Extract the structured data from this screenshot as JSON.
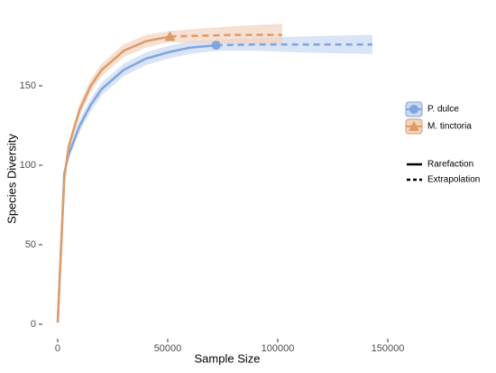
{
  "chart_data": {
    "type": "rarefaction",
    "x_label": "Sample Size",
    "y_label": "Species Diversity",
    "xlim": [
      -6967,
      154100
    ],
    "ylim": [
      -9.1,
      192.6
    ],
    "xticks": [
      0,
      50000,
      100000,
      150000
    ],
    "yticks": [
      0,
      50,
      100,
      150
    ],
    "series": [
      {
        "name": "P. dulce",
        "color": "#7fa5de",
        "band_color": "#c9d9f2",
        "marker": "circle",
        "rarefaction": {
          "x": [
            0,
            3000,
            5000,
            10000,
            15000,
            20000,
            30000,
            40000,
            50000,
            60000,
            72000
          ],
          "values": [
            1,
            95,
            107,
            125,
            138,
            148,
            160,
            167,
            171,
            174,
            175.5
          ],
          "lower": [
            1,
            93,
            104,
            121,
            134,
            144,
            156,
            163,
            167,
            170,
            172
          ],
          "upper": [
            1,
            97,
            110,
            129,
            142,
            152,
            164,
            171,
            175,
            178,
            179
          ]
        },
        "extrapolation": {
          "x": [
            72000,
            90000,
            110000,
            125000,
            143000
          ],
          "values": [
            175.5,
            176,
            176,
            176,
            176
          ],
          "lower": [
            172,
            172,
            171,
            170.5,
            170
          ],
          "upper": [
            179,
            180,
            181,
            181.5,
            182
          ]
        }
      },
      {
        "name": "M. tinctoria",
        "color": "#de9b6a",
        "band_color": "#f2d3bd",
        "marker": "triangle",
        "rarefaction": {
          "x": [
            0,
            3000,
            5000,
            10000,
            15000,
            20000,
            30000,
            40000,
            51000
          ],
          "values": [
            1,
            92,
            112,
            135,
            150,
            160,
            172,
            178,
            181
          ],
          "lower": [
            1,
            90,
            109,
            131,
            146,
            156,
            168,
            174,
            177.5
          ],
          "upper": [
            1,
            94,
            115,
            139,
            154,
            164,
            176,
            182,
            184.5
          ]
        },
        "extrapolation": {
          "x": [
            51000,
            65000,
            80000,
            102000
          ],
          "values": [
            181,
            181.5,
            182,
            182
          ],
          "lower": [
            177.5,
            177,
            176.5,
            176
          ],
          "upper": [
            184.5,
            186,
            187.5,
            189
          ]
        }
      }
    ],
    "line_styles": [
      {
        "name": "Rarefaction",
        "dash": "solid"
      },
      {
        "name": "Extrapolation",
        "dash": "dashed"
      }
    ]
  }
}
